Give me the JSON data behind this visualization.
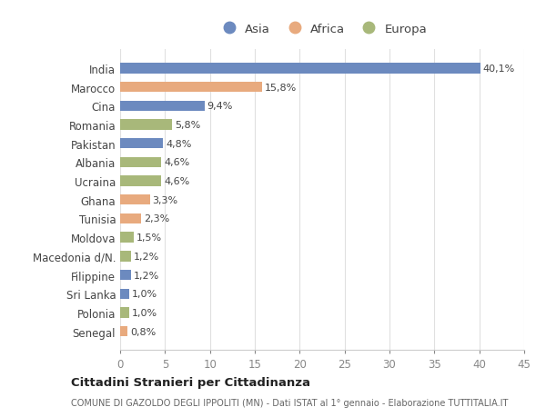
{
  "categories": [
    "India",
    "Marocco",
    "Cina",
    "Romania",
    "Pakistan",
    "Albania",
    "Ucraina",
    "Ghana",
    "Tunisia",
    "Moldova",
    "Macedonia d/N.",
    "Filippine",
    "Sri Lanka",
    "Polonia",
    "Senegal"
  ],
  "values": [
    40.1,
    15.8,
    9.4,
    5.8,
    4.8,
    4.6,
    4.6,
    3.3,
    2.3,
    1.5,
    1.2,
    1.2,
    1.0,
    1.0,
    0.8
  ],
  "labels": [
    "40,1%",
    "15,8%",
    "9,4%",
    "5,8%",
    "4,8%",
    "4,6%",
    "4,6%",
    "3,3%",
    "2,3%",
    "1,5%",
    "1,2%",
    "1,2%",
    "1,0%",
    "1,0%",
    "0,8%"
  ],
  "continents": [
    "Asia",
    "Africa",
    "Asia",
    "Europa",
    "Asia",
    "Europa",
    "Europa",
    "Africa",
    "Africa",
    "Europa",
    "Europa",
    "Asia",
    "Asia",
    "Europa",
    "Africa"
  ],
  "colors": {
    "Asia": "#6c8abf",
    "Africa": "#e8aa7e",
    "Europa": "#a8b87a"
  },
  "xlim": [
    0,
    45
  ],
  "xticks": [
    0,
    5,
    10,
    15,
    20,
    25,
    30,
    35,
    40,
    45
  ],
  "title": "Cittadini Stranieri per Cittadinanza",
  "subtitle": "COMUNE DI GAZOLDO DEGLI IPPOLITI (MN) - Dati ISTAT al 1° gennaio - Elaborazione TUTTITALIA.IT",
  "background_color": "#ffffff",
  "plot_bg_color": "#ffffff",
  "grid_color": "#e0e0e0",
  "label_fontsize": 8,
  "tick_fontsize": 8.5,
  "bar_height": 0.55
}
